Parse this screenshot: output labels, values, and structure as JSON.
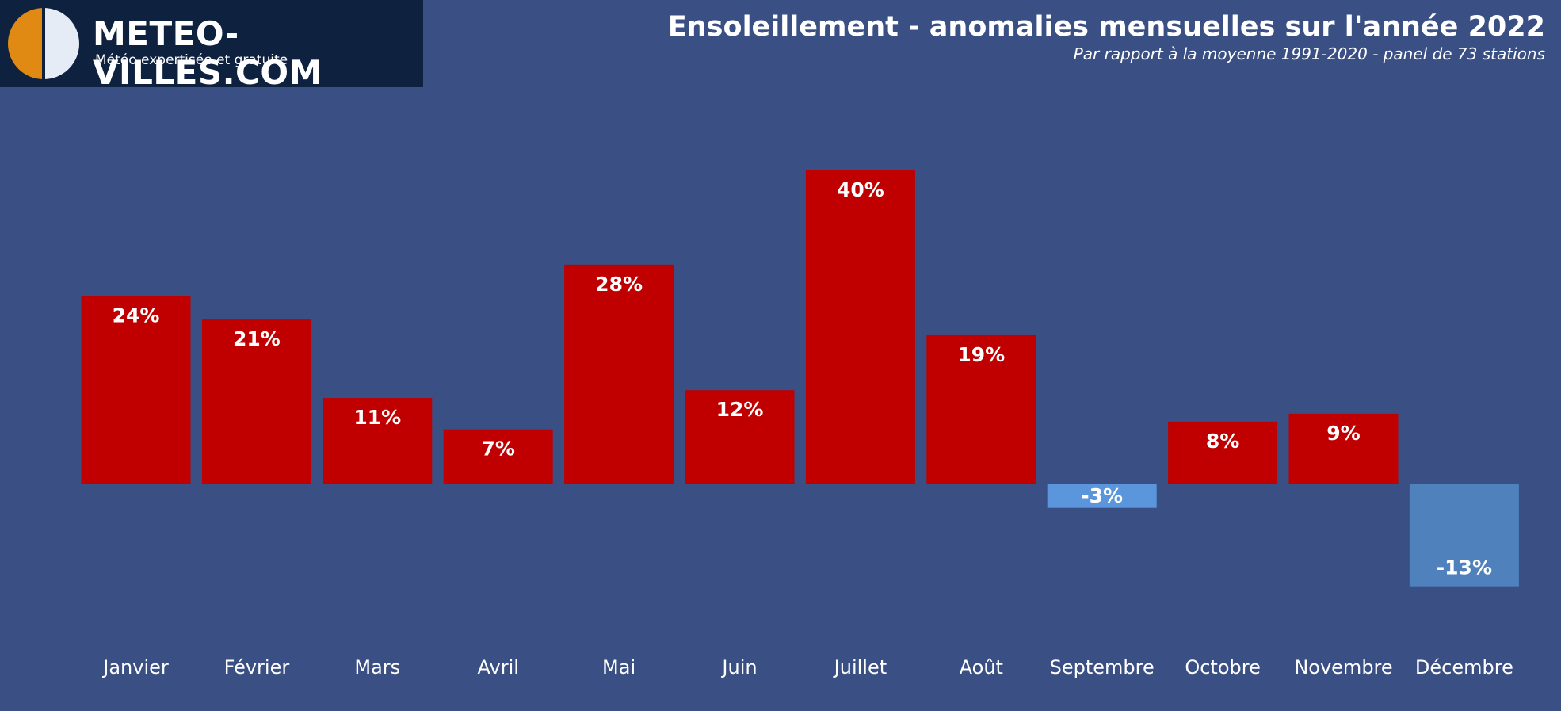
{
  "brand": {
    "name": "METEO-VILLES.COM",
    "tagline": "Météo expertisée et gratuite",
    "colors": {
      "sun": "#e08a14",
      "moon": "#e6ecf5",
      "background": "#0e213f"
    }
  },
  "colors": {
    "background": "#3a5084",
    "positive_bar": "#c00000",
    "negative_bar_light": "#5b95dc",
    "negative_bar": "#4f81bd"
  },
  "chart_data": {
    "type": "bar",
    "title": "Ensoleillement - anomalies mensuelles sur l'année 2022",
    "subtitle": "Par rapport à la moyenne 1991-2020 - panel de 73 stations",
    "categories": [
      "Janvier",
      "Février",
      "Mars",
      "Avril",
      "Mai",
      "Juin",
      "Juillet",
      "Août",
      "Septembre",
      "Octobre",
      "Novembre",
      "Décembre"
    ],
    "values": [
      24,
      21,
      11,
      7,
      28,
      12,
      40,
      19,
      -3,
      8,
      9,
      -13
    ],
    "labels": [
      "24%",
      "21%",
      "11%",
      "7%",
      "28%",
      "12%",
      "40%",
      "19%",
      "-3%",
      "8%",
      "9%",
      "-13%"
    ],
    "unit": "%",
    "ylim": [
      -24,
      48
    ],
    "grid": false,
    "legend": "none"
  }
}
